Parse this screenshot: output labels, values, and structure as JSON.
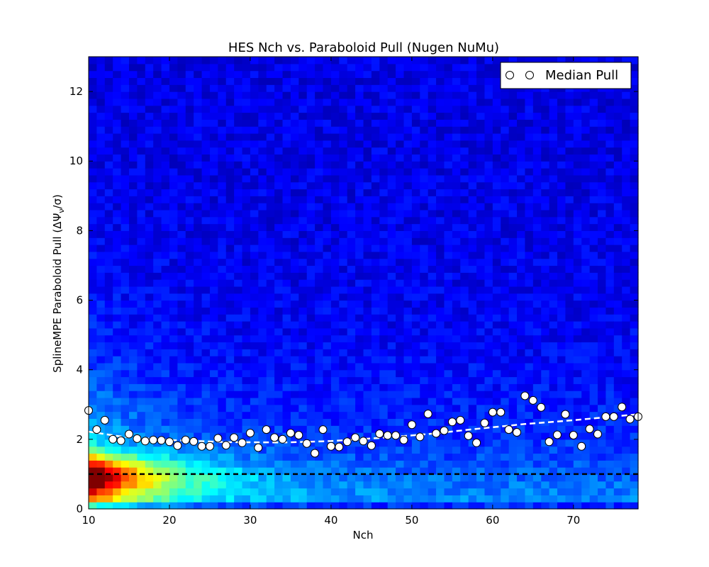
{
  "chart_data": {
    "type": "heatmap",
    "title": "HES Nch vs. Paraboloid Pull (Nugen NuMu)",
    "xlabel": "Nch",
    "ylabel": "SplineMPE Paraboloid Pull (ΔΨ",
    "ylabel_sub": "ν",
    "ylabel_tail": "/σ)",
    "xlim": [
      10,
      78
    ],
    "ylim": [
      0,
      13
    ],
    "x_ticks": [
      10,
      20,
      30,
      40,
      50,
      60,
      70
    ],
    "y_ticks": [
      0,
      2,
      4,
      6,
      8,
      10,
      12
    ],
    "colormap": "jet",
    "grid": false,
    "legend_placement": "top-right",
    "series": [
      {
        "name": "Median Pull",
        "kind": "scatter",
        "marker": "white-circle",
        "x": [
          10,
          11,
          12,
          13,
          14,
          15,
          16,
          17,
          18,
          19,
          20,
          21,
          22,
          23,
          24,
          25,
          26,
          27,
          28,
          29,
          30,
          31,
          32,
          33,
          34,
          35,
          36,
          37,
          38,
          39,
          40,
          41,
          42,
          43,
          44,
          45,
          46,
          47,
          48,
          49,
          50,
          51,
          52,
          53,
          54,
          55,
          56,
          57,
          58,
          59,
          60,
          61,
          62,
          63,
          64,
          65,
          66,
          67,
          68,
          69,
          70,
          71,
          72,
          73,
          74,
          75,
          76,
          77,
          78
        ],
        "y": [
          2.83,
          2.28,
          2.55,
          2.0,
          1.96,
          2.15,
          2.02,
          1.95,
          1.98,
          1.97,
          1.93,
          1.82,
          1.98,
          1.94,
          1.8,
          1.8,
          2.03,
          1.83,
          2.05,
          1.9,
          2.18,
          1.76,
          2.28,
          2.05,
          2.0,
          2.18,
          2.12,
          1.88,
          1.6,
          2.28,
          1.8,
          1.78,
          1.93,
          2.05,
          1.95,
          1.82,
          2.16,
          2.11,
          2.11,
          1.98,
          2.42,
          2.07,
          2.73,
          2.17,
          2.25,
          2.5,
          2.55,
          2.1,
          1.9,
          2.47,
          2.78,
          2.78,
          2.28,
          2.2,
          3.25,
          3.12,
          2.92,
          1.93,
          2.13,
          2.72,
          2.12,
          1.8,
          2.3,
          2.15,
          2.65,
          2.65,
          2.93,
          2.58,
          2.65
        ]
      },
      {
        "name": "",
        "kind": "line",
        "style": "dashed",
        "color": "#ffffff",
        "x": [
          10,
          14,
          20,
          27,
          34,
          40,
          46,
          52,
          58,
          64,
          70,
          78
        ],
        "y": [
          2.22,
          2.08,
          1.98,
          1.92,
          1.91,
          1.95,
          2.04,
          2.15,
          2.3,
          2.44,
          2.55,
          2.72
        ]
      },
      {
        "name": "",
        "kind": "hline",
        "style": "dashed",
        "color": "#000000",
        "y": 1.0
      }
    ]
  }
}
